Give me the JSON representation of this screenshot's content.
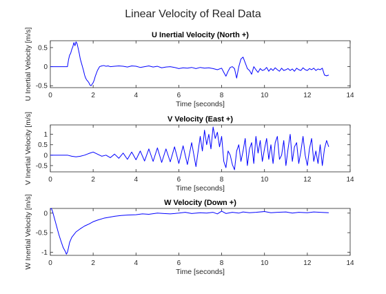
{
  "figure": {
    "title": "Linear Velocity of Real Data"
  },
  "chart_data": [
    {
      "type": "line",
      "title": "U Inertial Velocity (North +)",
      "xlabel": "Time [seconds]",
      "ylabel": "U Inertial Velocity [m/s]",
      "xlim": [
        0,
        14
      ],
      "ylim": [
        -0.55,
        0.68
      ],
      "xticks": [
        0,
        2,
        4,
        6,
        8,
        10,
        12,
        14
      ],
      "xticklabels": [
        "0",
        "2",
        "4",
        "6",
        "8",
        "10",
        "12",
        "14"
      ],
      "yticks": [
        -0.5,
        0,
        0.5
      ],
      "yticklabels": [
        "-0.5",
        "0",
        "0.5"
      ],
      "line_color": "#0000ff",
      "grid": false,
      "series": [
        {
          "x": [
            0,
            0.8,
            0.85,
            0.9,
            0.95,
            1.0,
            1.05,
            1.1,
            1.15,
            1.2,
            1.25,
            1.3,
            1.35,
            1.4,
            1.45,
            1.5,
            1.55,
            1.6,
            1.65,
            1.7,
            1.75,
            1.8,
            1.85,
            1.9,
            1.95,
            2.0,
            2.05,
            2.1,
            2.2,
            2.3,
            2.4,
            2.5,
            2.6,
            2.7,
            2.8,
            3.0,
            3.2,
            3.4,
            3.6,
            3.8,
            4.0,
            4.2,
            4.4,
            4.6,
            4.8,
            5.0,
            5.2,
            5.4,
            5.6,
            5.8,
            6.0,
            6.2,
            6.4,
            6.6,
            6.8,
            7.0,
            7.2,
            7.4,
            7.6,
            7.8,
            8.0,
            8.1,
            8.2,
            8.3,
            8.4,
            8.5,
            8.6,
            8.7,
            8.8,
            8.9,
            9.0,
            9.1,
            9.2,
            9.3,
            9.4,
            9.5,
            9.6,
            9.7,
            9.8,
            9.9,
            10.0,
            10.1,
            10.2,
            10.3,
            10.4,
            10.5,
            10.6,
            10.7,
            10.8,
            10.9,
            11.0,
            11.1,
            11.2,
            11.3,
            11.4,
            11.5,
            11.6,
            11.7,
            11.8,
            11.9,
            12.0,
            12.1,
            12.2,
            12.3,
            12.4,
            12.5,
            12.6,
            12.7,
            12.8,
            12.9,
            13.0
          ],
          "y": [
            0,
            0,
            0.18,
            0.3,
            0.35,
            0.45,
            0.52,
            0.63,
            0.55,
            0.65,
            0.6,
            0.48,
            0.35,
            0.2,
            0.1,
            0.0,
            -0.1,
            -0.22,
            -0.3,
            -0.35,
            -0.38,
            -0.42,
            -0.48,
            -0.5,
            -0.46,
            -0.42,
            -0.35,
            -0.25,
            -0.1,
            0.0,
            0.02,
            0.03,
            0.01,
            0.02,
            0.0,
            0.01,
            0.02,
            0.01,
            -0.01,
            0.02,
            0.01,
            -0.02,
            0.0,
            0.02,
            -0.01,
            0.01,
            -0.03,
            -0.01,
            0.0,
            -0.02,
            -0.05,
            -0.03,
            -0.04,
            -0.02,
            -0.05,
            -0.02,
            -0.04,
            -0.03,
            -0.05,
            -0.08,
            -0.04,
            -0.15,
            -0.25,
            -0.12,
            -0.02,
            0.0,
            -0.05,
            -0.3,
            0.0,
            0.2,
            0.25,
            0.1,
            -0.05,
            -0.1,
            -0.2,
            0.0,
            -0.08,
            -0.15,
            -0.05,
            -0.1,
            -0.08,
            -0.02,
            -0.12,
            -0.05,
            -0.1,
            -0.03,
            -0.08,
            -0.12,
            -0.04,
            -0.1,
            -0.08,
            -0.05,
            -0.1,
            -0.06,
            -0.12,
            -0.04,
            -0.08,
            -0.1,
            -0.03,
            -0.08,
            -0.1,
            -0.05,
            -0.08,
            -0.04,
            -0.1,
            -0.06,
            -0.08,
            -0.04,
            -0.22,
            -0.24,
            -0.22
          ]
        }
      ]
    },
    {
      "type": "line",
      "title": "V Velocity (East +)",
      "xlabel": "Time [seconds]",
      "ylabel": "V Inertial Velocity [m/s]",
      "xlim": [
        0,
        14
      ],
      "ylim": [
        -0.8,
        1.45
      ],
      "xticks": [
        0,
        2,
        4,
        6,
        8,
        10,
        12,
        14
      ],
      "xticklabels": [
        "0",
        "2",
        "4",
        "6",
        "8",
        "10",
        "12",
        "14"
      ],
      "yticks": [
        -0.5,
        0,
        0.5,
        1
      ],
      "yticklabels": [
        "-0.5",
        "0",
        "0.5",
        "1"
      ],
      "line_color": "#0000ff",
      "grid": false,
      "series": [
        {
          "x": [
            0,
            0.8,
            1.0,
            1.2,
            1.4,
            1.6,
            1.8,
            2.0,
            2.2,
            2.4,
            2.6,
            2.8,
            3.0,
            3.2,
            3.4,
            3.6,
            3.8,
            4.0,
            4.2,
            4.4,
            4.6,
            4.8,
            5.0,
            5.2,
            5.4,
            5.6,
            5.8,
            6.0,
            6.2,
            6.4,
            6.6,
            6.8,
            7.0,
            7.1,
            7.2,
            7.3,
            7.4,
            7.5,
            7.6,
            7.7,
            7.8,
            7.9,
            8.0,
            8.1,
            8.2,
            8.3,
            8.4,
            8.5,
            8.6,
            8.7,
            8.8,
            8.9,
            9.0,
            9.1,
            9.2,
            9.3,
            9.4,
            9.5,
            9.6,
            9.7,
            9.8,
            9.9,
            10.0,
            10.1,
            10.2,
            10.3,
            10.4,
            10.5,
            10.6,
            10.7,
            10.8,
            10.9,
            11.0,
            11.1,
            11.2,
            11.3,
            11.4,
            11.5,
            11.6,
            11.7,
            11.8,
            11.9,
            12.0,
            12.1,
            12.2,
            12.3,
            12.4,
            12.5,
            12.6,
            12.7,
            12.8,
            12.9,
            13.0
          ],
          "y": [
            0,
            0,
            -0.05,
            -0.08,
            -0.05,
            0.0,
            0.08,
            0.15,
            0.05,
            -0.05,
            0.0,
            -0.12,
            0.05,
            -0.15,
            0.1,
            -0.2,
            0.15,
            -0.22,
            0.2,
            -0.28,
            0.3,
            -0.3,
            0.35,
            -0.35,
            0.3,
            -0.32,
            0.4,
            -0.4,
            0.45,
            -0.45,
            0.6,
            -0.55,
            0.9,
            0.2,
            1.2,
            0.5,
            1.0,
            0.3,
            1.35,
            0.8,
            1.1,
            0.4,
            0.9,
            -0.3,
            -0.6,
            0.2,
            0.0,
            -0.45,
            -0.7,
            0.2,
            0.5,
            -0.3,
            0.2,
            0.8,
            -0.5,
            0.3,
            0.6,
            -0.4,
            0.9,
            0.1,
            0.7,
            -0.3,
            0.3,
            0.8,
            -0.2,
            0.5,
            -0.4,
            0.6,
            0.9,
            -0.2,
            0.0,
            0.7,
            -0.5,
            0.3,
            1.0,
            -0.3,
            0.4,
            0.6,
            -0.4,
            0.2,
            0.9,
            0.0,
            -0.5,
            0.3,
            0.8,
            -0.3,
            0.2,
            -0.4,
            0.5,
            -0.5,
            0.3,
            0.7,
            0.4
          ]
        }
      ]
    },
    {
      "type": "line",
      "title": "W Velocity (Down +)",
      "xlabel": "Time [seconds]",
      "ylabel": "W Inertial Velocity [m/s]",
      "xlim": [
        0,
        14
      ],
      "ylim": [
        -1.08,
        0.12
      ],
      "xticks": [
        0,
        2,
        4,
        6,
        8,
        10,
        12,
        14
      ],
      "xticklabels": [
        "0",
        "2",
        "4",
        "6",
        "8",
        "10",
        "12",
        "14"
      ],
      "yticks": [
        -1,
        -0.5,
        0
      ],
      "yticklabels": [
        "-1",
        "-0.5",
        "0"
      ],
      "line_color": "#0000ff",
      "grid": false,
      "series": [
        {
          "x": [
            0,
            0.05,
            0.1,
            0.2,
            0.3,
            0.4,
            0.5,
            0.6,
            0.7,
            0.75,
            0.8,
            0.85,
            0.9,
            1.0,
            1.1,
            1.2,
            1.4,
            1.6,
            1.8,
            2.0,
            2.2,
            2.5,
            2.8,
            3.0,
            3.3,
            3.6,
            4.0,
            4.3,
            4.6,
            5.0,
            5.3,
            5.6,
            6.0,
            6.3,
            6.6,
            7.0,
            7.3,
            7.6,
            7.8,
            8.0,
            8.2,
            8.5,
            8.8,
            9.0,
            9.3,
            9.6,
            10.0,
            10.3,
            10.6,
            11.0,
            11.3,
            11.6,
            12.0,
            12.3,
            12.6,
            13.0
          ],
          "y": [
            0.1,
            0.12,
            0.05,
            -0.15,
            -0.35,
            -0.55,
            -0.72,
            -0.88,
            -0.98,
            -1.05,
            -1.0,
            -0.88,
            -0.75,
            -0.62,
            -0.55,
            -0.48,
            -0.4,
            -0.33,
            -0.28,
            -0.22,
            -0.18,
            -0.13,
            -0.1,
            -0.08,
            -0.06,
            -0.05,
            -0.04,
            -0.02,
            -0.03,
            0.0,
            -0.01,
            -0.02,
            0.0,
            0.02,
            -0.01,
            0.01,
            0.0,
            0.02,
            -0.02,
            0.05,
            -0.01,
            0.02,
            0.0,
            0.03,
            0.01,
            0.02,
            0.04,
            0.01,
            0.02,
            0.03,
            0.0,
            0.02,
            0.01,
            0.03,
            0.02,
            0.01
          ]
        }
      ]
    }
  ]
}
